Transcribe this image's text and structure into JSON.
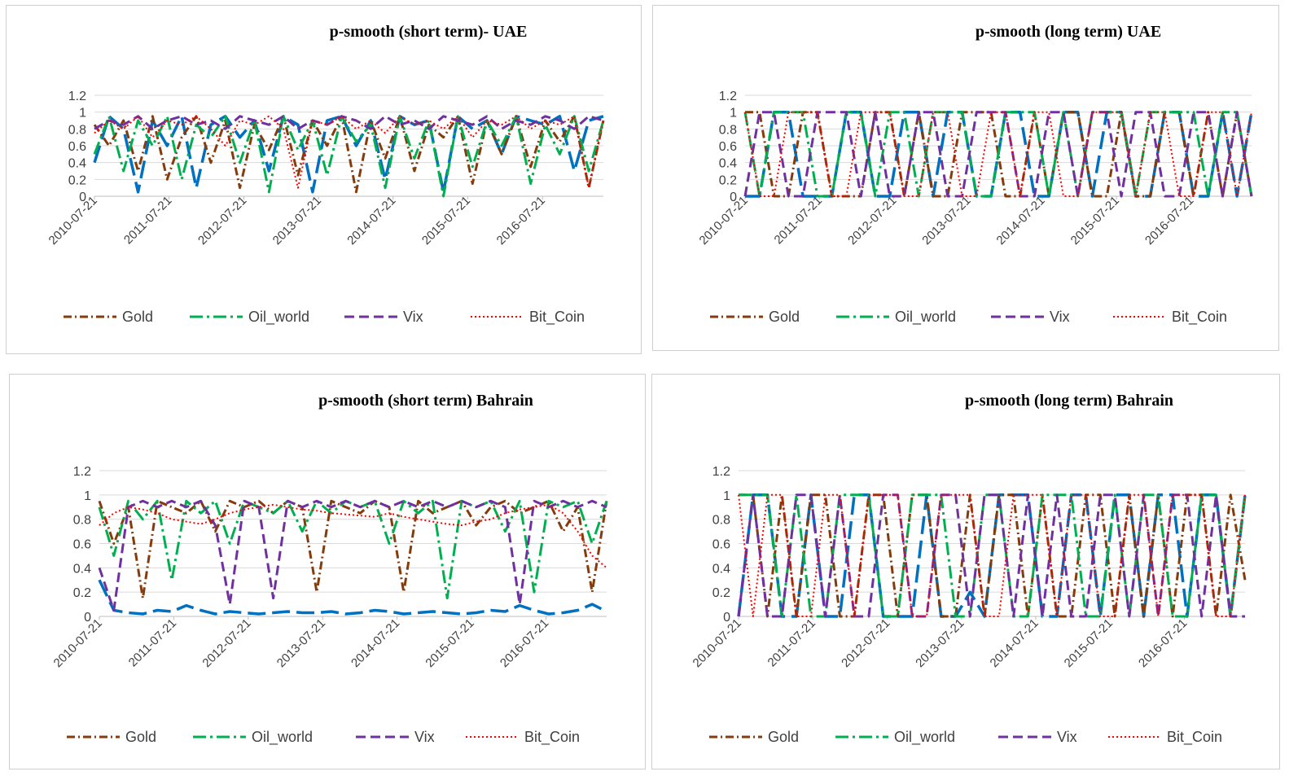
{
  "colors": {
    "Gold": "#843c0c",
    "Oil_world": "#00b050",
    "Vix": "#7030a0",
    "Bit_Coin": "#ff0000",
    "unlabeled": "#0070c0",
    "grid": "#d9d9d9",
    "axis": "#bfbfbf"
  },
  "chart_data": [
    {
      "type": "line",
      "title": "p-smooth (short term)- UAE",
      "xlabel": "",
      "ylabel": "",
      "ylim": [
        0,
        1.2
      ],
      "yticks": [
        "0",
        "0.2",
        "0.4",
        "0.6",
        "0.8",
        "1",
        "1.2"
      ],
      "xticks": [
        "2010-07-21",
        "2011-07-21",
        "2012-07-21",
        "2013-07-21",
        "2014-07-21",
        "2015-07-21",
        "2016-07-21"
      ],
      "xrange": [
        "2010-07-21",
        "2017-05-15"
      ],
      "grid": true,
      "legend_position": "bottom",
      "legend": [
        "Gold",
        "Oil_world",
        "Vix",
        "Bit_Coin"
      ],
      "series": [
        {
          "name": "Gold",
          "line_style": "dash-dot",
          "values": [
            0.85,
            0.6,
            0.9,
            0.3,
            0.95,
            0.2,
            0.7,
            0.95,
            0.4,
            0.9,
            0.1,
            0.85,
            0.55,
            0.95,
            0.25,
            0.9,
            0.6,
            0.95,
            0.05,
            0.9,
            0.45,
            0.95,
            0.3,
            0.85,
            0.7,
            0.95,
            0.15,
            0.9,
            0.5,
            0.95,
            0.35,
            0.9,
            0.65,
            0.95,
            0.1,
            0.9
          ]
        },
        {
          "name": "Oil_world",
          "line_style": "long-dash-dot",
          "values": [
            0.5,
            0.95,
            0.3,
            0.9,
            0.6,
            0.95,
            0.2,
            0.85,
            0.7,
            0.95,
            0.4,
            0.9,
            0.05,
            0.95,
            0.55,
            0.9,
            0.25,
            0.95,
            0.65,
            0.85,
            0.1,
            0.95,
            0.45,
            0.9,
            0.0,
            0.95,
            0.35,
            0.9,
            0.6,
            0.95,
            0.15,
            0.85,
            0.5,
            0.95,
            0.3,
            0.9
          ]
        },
        {
          "name": "Vix",
          "line_style": "dash",
          "values": [
            0.8,
            0.9,
            0.85,
            0.95,
            0.8,
            0.9,
            0.95,
            0.85,
            0.9,
            0.8,
            0.95,
            0.9,
            0.85,
            0.95,
            0.8,
            0.9,
            0.85,
            0.95,
            0.9,
            0.8,
            0.95,
            0.85,
            0.9,
            0.8,
            0.95,
            0.9,
            0.85,
            0.95,
            0.8,
            0.9,
            0.85,
            0.95,
            0.9,
            0.8,
            0.95,
            0.9
          ]
        },
        {
          "name": "Bit_Coin",
          "line_style": "dot",
          "values": [
            0.75,
            0.9,
            0.8,
            0.95,
            0.7,
            0.9,
            0.85,
            0.95,
            0.8,
            0.6,
            0.9,
            0.85,
            0.95,
            0.8,
            0.1,
            0.9,
            0.85,
            0.95,
            0.8,
            0.9,
            0.75,
            0.95,
            0.85,
            0.9,
            0.8,
            0.95,
            0.7,
            0.9,
            0.85,
            0.95,
            0.8,
            0.9,
            0.85,
            0.95,
            0.1,
            0.9
          ]
        },
        {
          "name": "",
          "line_style": "long-dash",
          "values": [
            0.4,
            0.95,
            0.8,
            0.05,
            0.9,
            0.6,
            0.95,
            0.1,
            0.85,
            0.95,
            0.7,
            0.9,
            0.3,
            0.95,
            0.85,
            0.05,
            0.9,
            0.95,
            0.6,
            0.9,
            0.2,
            0.95,
            0.85,
            0.9,
            0.05,
            0.95,
            0.8,
            0.9,
            0.5,
            0.95,
            0.9,
            0.85,
            0.95,
            0.3,
            0.9,
            0.95
          ]
        }
      ]
    },
    {
      "type": "line",
      "title": "p-smooth (long term) UAE",
      "xlabel": "",
      "ylabel": "",
      "ylim": [
        0,
        1.2
      ],
      "yticks": [
        "0",
        "0.2",
        "0.4",
        "0.6",
        "0.8",
        "1",
        "1.2"
      ],
      "xticks": [
        "2010-07-21",
        "2011-07-21",
        "2012-07-21",
        "2013-07-21",
        "2014-07-21",
        "2015-07-21",
        "2016-07-21"
      ],
      "xrange": [
        "2010-07-21",
        "2017-05-15"
      ],
      "grid": true,
      "legend_position": "bottom",
      "legend": [
        "Gold",
        "Oil_world",
        "Vix",
        "Bit_Coin"
      ],
      "series": [
        {
          "name": "Gold",
          "line_style": "dash-dot",
          "values": [
            1,
            1,
            0,
            0,
            1,
            1,
            0,
            0,
            0,
            1,
            1,
            0,
            1,
            0,
            0,
            1,
            1,
            1,
            0,
            0,
            1,
            0,
            1,
            1,
            0,
            0,
            1,
            0,
            0,
            1,
            1,
            0,
            1,
            0,
            1,
            0
          ]
        },
        {
          "name": "Oil_world",
          "line_style": "long-dash-dot",
          "values": [
            1,
            0,
            1,
            1,
            1,
            0,
            0,
            1,
            1,
            0,
            1,
            1,
            0,
            1,
            1,
            1,
            0,
            0,
            1,
            1,
            1,
            0,
            1,
            0,
            1,
            1,
            1,
            0,
            1,
            1,
            1,
            1,
            0,
            1,
            1,
            0
          ]
        },
        {
          "name": "Vix",
          "line_style": "dash",
          "values": [
            0,
            1,
            1,
            0,
            0,
            1,
            1,
            1,
            0,
            1,
            0,
            0,
            1,
            1,
            0,
            0,
            1,
            1,
            1,
            0,
            0,
            1,
            1,
            0,
            1,
            1,
            0,
            1,
            1,
            0,
            0,
            1,
            1,
            0,
            1,
            0
          ]
        },
        {
          "name": "Bit_Coin",
          "line_style": "dot",
          "values": [
            1,
            0,
            0,
            1,
            1,
            1,
            0,
            0,
            1,
            1,
            1,
            0,
            0,
            1,
            1,
            0,
            0,
            1,
            1,
            0,
            1,
            1,
            0,
            0,
            1,
            1,
            1,
            0,
            1,
            1,
            0,
            0,
            1,
            1,
            0,
            1
          ]
        },
        {
          "name": "",
          "line_style": "long-dash",
          "values": [
            0,
            0,
            1,
            1,
            0,
            0,
            0,
            1,
            1,
            0,
            0,
            1,
            1,
            0,
            1,
            1,
            0,
            0,
            1,
            1,
            0,
            0,
            1,
            1,
            0,
            1,
            1,
            0,
            0,
            1,
            1,
            0,
            0,
            1,
            0,
            1
          ]
        }
      ]
    },
    {
      "type": "line",
      "title": "p-smooth (short term) Bahrain",
      "xlabel": "",
      "ylabel": "",
      "ylim": [
        0,
        1.2
      ],
      "yticks": [
        "0",
        "0.2",
        "0.4",
        "0.6",
        "0.8",
        "1",
        "1.2"
      ],
      "xticks": [
        "2010-07-21",
        "2011-07-21",
        "2012-07-21",
        "2013-07-21",
        "2014-07-21",
        "2015-07-21",
        "2016-07-21"
      ],
      "xrange": [
        "2010-07-21",
        "2017-05-15"
      ],
      "grid": true,
      "legend_position": "bottom",
      "legend": [
        "Gold",
        "Oil_world",
        "Vix",
        "Bit_Coin"
      ],
      "series": [
        {
          "name": "Gold",
          "line_style": "dash-dot",
          "values": [
            0.95,
            0.6,
            0.9,
            0.15,
            0.95,
            0.9,
            0.85,
            0.95,
            0.7,
            0.95,
            0.9,
            0.95,
            0.85,
            0.95,
            0.9,
            0.2,
            0.95,
            0.9,
            0.85,
            0.95,
            0.9,
            0.2,
            0.95,
            0.85,
            0.9,
            0.95,
            0.75,
            0.9,
            0.95,
            0.85,
            0.9,
            0.95,
            0.7,
            0.9,
            0.2,
            0.95
          ]
        },
        {
          "name": "Oil_world",
          "line_style": "long-dash-dot",
          "values": [
            0.9,
            0.5,
            0.95,
            0.8,
            0.95,
            0.3,
            0.95,
            0.85,
            0.95,
            0.6,
            0.95,
            0.9,
            0.85,
            0.95,
            0.7,
            0.95,
            0.85,
            0.95,
            0.9,
            0.95,
            0.6,
            0.95,
            0.85,
            0.95,
            0.15,
            0.95,
            0.9,
            0.95,
            0.7,
            0.95,
            0.2,
            0.95,
            0.9,
            0.95,
            0.6,
            0.95
          ]
        },
        {
          "name": "Vix",
          "line_style": "dash",
          "values": [
            0.4,
            0.05,
            0.9,
            0.95,
            0.9,
            0.95,
            0.9,
            0.95,
            0.75,
            0.1,
            0.95,
            0.9,
            0.15,
            0.95,
            0.9,
            0.95,
            0.9,
            0.95,
            0.9,
            0.95,
            0.9,
            0.95,
            0.9,
            0.95,
            0.9,
            0.95,
            0.9,
            0.95,
            0.9,
            0.1,
            0.95,
            0.9,
            0.95,
            0.9,
            0.95,
            0.9
          ]
        },
        {
          "name": "Bit_Coin",
          "line_style": "dot",
          "values": [
            0.75,
            0.85,
            0.9,
            0.88,
            0.85,
            0.8,
            0.78,
            0.76,
            0.8,
            0.85,
            0.88,
            0.9,
            0.92,
            0.9,
            0.88,
            0.87,
            0.85,
            0.84,
            0.83,
            0.82,
            0.85,
            0.82,
            0.8,
            0.78,
            0.76,
            0.75,
            0.78,
            0.8,
            0.85,
            0.88,
            0.9,
            0.92,
            0.85,
            0.7,
            0.5,
            0.4
          ]
        },
        {
          "name": "",
          "line_style": "long-dash",
          "values": [
            0.3,
            0.05,
            0.03,
            0.02,
            0.05,
            0.04,
            0.09,
            0.05,
            0.02,
            0.04,
            0.03,
            0.02,
            0.03,
            0.04,
            0.03,
            0.03,
            0.04,
            0.02,
            0.03,
            0.05,
            0.04,
            0.02,
            0.03,
            0.04,
            0.03,
            0.02,
            0.03,
            0.05,
            0.04,
            0.09,
            0.05,
            0.02,
            0.03,
            0.05,
            0.1,
            0.04
          ]
        }
      ]
    },
    {
      "type": "line",
      "title": "p-smooth (long term) Bahrain",
      "xlabel": "",
      "ylabel": "",
      "ylim": [
        0,
        1.2
      ],
      "yticks": [
        "0",
        "0.2",
        "0.4",
        "0.6",
        "0.8",
        "1",
        "1.2"
      ],
      "xticks": [
        "2010-07-21",
        "2011-07-21",
        "2012-07-21",
        "2013-07-21",
        "2014-07-21",
        "2015-07-21",
        "2016-07-21"
      ],
      "xrange": [
        "2010-07-21",
        "2017-05-15"
      ],
      "grid": true,
      "legend_position": "bottom",
      "legend": [
        "Gold",
        "Oil_world",
        "Vix",
        "Bit_Coin"
      ],
      "series": [
        {
          "name": "Gold",
          "line_style": "dash-dot",
          "values": [
            1,
            1,
            0,
            1,
            0,
            1,
            1,
            0,
            0,
            1,
            1,
            0,
            1,
            1,
            0,
            0,
            1,
            0,
            1,
            1,
            0,
            1,
            0,
            0,
            1,
            1,
            0,
            1,
            0,
            1,
            0,
            1,
            1,
            0,
            1,
            0.3
          ]
        },
        {
          "name": "Oil_world",
          "line_style": "long-dash-dot",
          "values": [
            1,
            1,
            1,
            0,
            1,
            0,
            0,
            1,
            1,
            1,
            0,
            0,
            1,
            1,
            1,
            0,
            0,
            1,
            1,
            0,
            0,
            1,
            1,
            1,
            0,
            0,
            1,
            0,
            1,
            1,
            0,
            0,
            1,
            1,
            0,
            1
          ]
        },
        {
          "name": "Vix",
          "line_style": "dash",
          "values": [
            0,
            1,
            0,
            0,
            1,
            1,
            0,
            1,
            0,
            0,
            1,
            1,
            0,
            0,
            1,
            1,
            0,
            1,
            1,
            0,
            1,
            0,
            1,
            0,
            0,
            1,
            1,
            0,
            1,
            0,
            1,
            1,
            0,
            1,
            0,
            0
          ]
        },
        {
          "name": "Bit_Coin",
          "line_style": "dot",
          "values": [
            1,
            0,
            1,
            1,
            0,
            0,
            1,
            1,
            0,
            1,
            1,
            1,
            0,
            0,
            1,
            1,
            1,
            0,
            0,
            1,
            1,
            1,
            0,
            1,
            1,
            0,
            0,
            1,
            1,
            0,
            1,
            1,
            1,
            0,
            0,
            1
          ]
        },
        {
          "name": "",
          "line_style": "long-dash",
          "values": [
            0,
            1,
            1,
            0,
            0,
            1,
            0,
            0,
            1,
            1,
            0,
            0,
            0,
            1,
            0,
            0,
            0.2,
            0,
            1,
            1,
            1,
            0,
            0,
            1,
            1,
            0,
            1,
            1,
            0,
            1,
            1,
            0,
            1,
            1,
            0,
            1
          ]
        }
      ]
    }
  ]
}
